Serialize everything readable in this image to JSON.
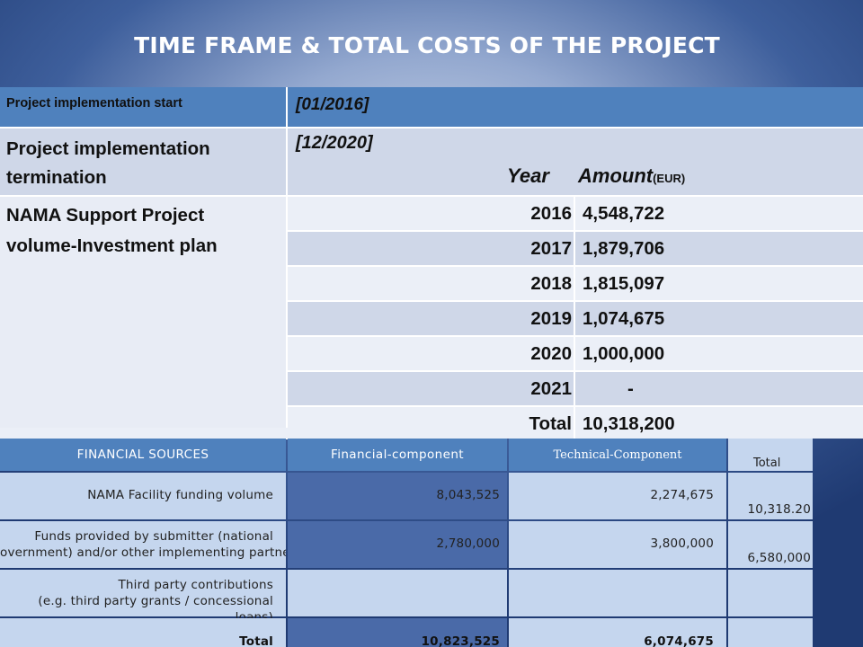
{
  "title": "TIME FRAME & TOTAL COSTS OF THE PROJECT",
  "upper_table": {
    "start_label": "Project implementation start",
    "start_value": "[01/2016]",
    "end_label_line1": "Project implementation",
    "end_label_line2": "termination",
    "end_value": "[12/2020]",
    "year_header": "Year",
    "amount_header": "Amount",
    "amount_unit": "(EUR)",
    "nama_label_line1": "NAMA Support Project",
    "nama_label_line2": "volume-Investment plan",
    "rows": [
      {
        "year": "2016",
        "amount": "4,548,722"
      },
      {
        "year": "2017",
        "amount": "1,879,706"
      },
      {
        "year": "2018",
        "amount": "1,815,097"
      },
      {
        "year": "2019",
        "amount": "1,074,675"
      },
      {
        "year": "2020",
        "amount": "1,000,000"
      },
      {
        "year": "2021",
        "amount": "-"
      },
      {
        "year": "Total",
        "amount": "10,318,200"
      }
    ]
  },
  "lower_table": {
    "headers": {
      "sources": "FINANCIAL SOURCES",
      "financial": "Financial-component",
      "technical": "Technical-Component",
      "total": "Total"
    },
    "rows": [
      {
        "label_line1": "NAMA Facility funding volume",
        "label_line2": "",
        "financial": "8,043,525",
        "technical": "2,274,675",
        "total": "10,318.20"
      },
      {
        "label_line1": "Funds provided by submitter (national",
        "label_line2": "overnment) and/or other implementing partners",
        "financial": "2,780,000",
        "technical": "3,800,000",
        "total": "6,580,000"
      },
      {
        "label_line1": "Third party contributions",
        "label_line2": "(e.g. third party grants / concessional loans)",
        "financial": "",
        "technical": "",
        "total": ""
      },
      {
        "label_line1": "Total",
        "label_line2": "",
        "financial": "10,823,525",
        "technical": "6,074,675",
        "total": ""
      }
    ]
  }
}
